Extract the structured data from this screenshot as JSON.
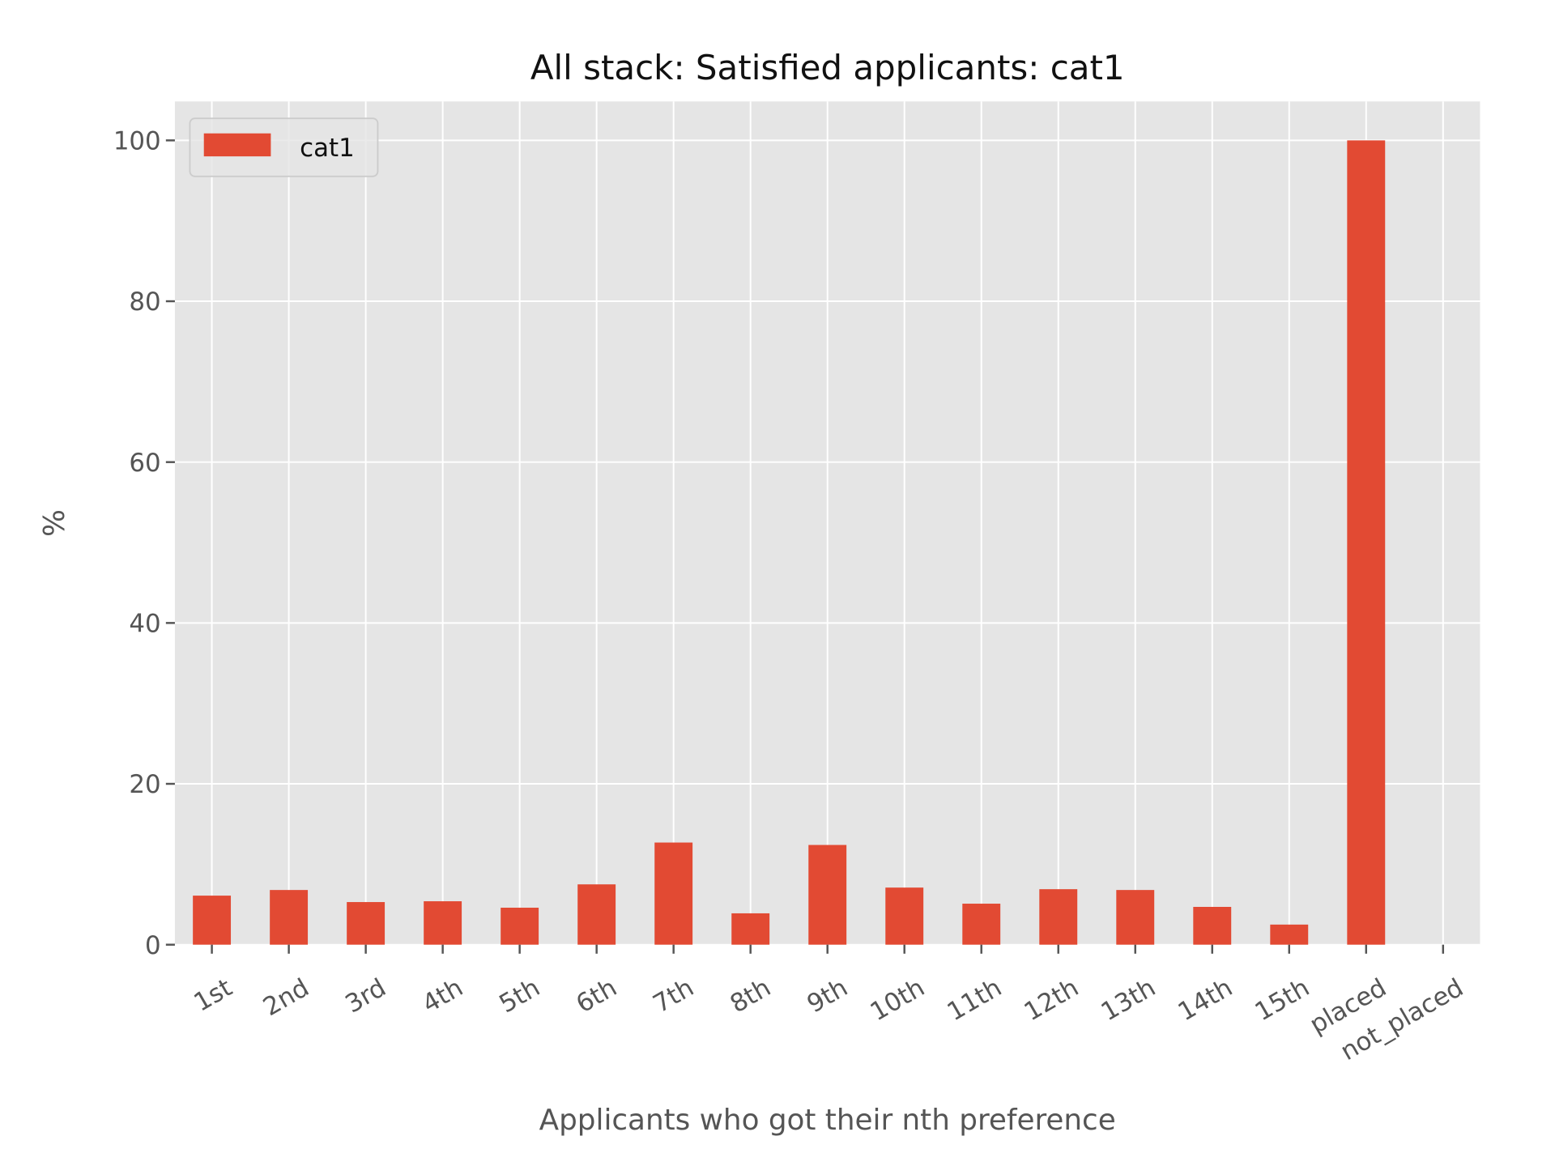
{
  "chart_data": {
    "type": "bar",
    "title": "All stack: Satisfied applicants: cat1",
    "xlabel": "Applicants who got their nth preference",
    "ylabel": "%",
    "categories": [
      "1st",
      "2nd",
      "3rd",
      "4th",
      "5th",
      "6th",
      "7th",
      "8th",
      "9th",
      "10th",
      "11th",
      "12th",
      "13th",
      "14th",
      "15th",
      "placed",
      "not_placed"
    ],
    "series": [
      {
        "name": "cat1",
        "color": "#E24A33",
        "values": [
          6.1,
          6.8,
          5.3,
          5.4,
          4.6,
          7.5,
          12.7,
          3.9,
          12.4,
          7.1,
          5.1,
          6.9,
          6.8,
          4.7,
          2.5,
          100,
          0
        ]
      }
    ],
    "ylim": [
      0,
      105
    ],
    "yticks": [
      0,
      20,
      40,
      60,
      80,
      100
    ],
    "grid": true,
    "legend": "top-left",
    "background": "#E5E5E5"
  }
}
